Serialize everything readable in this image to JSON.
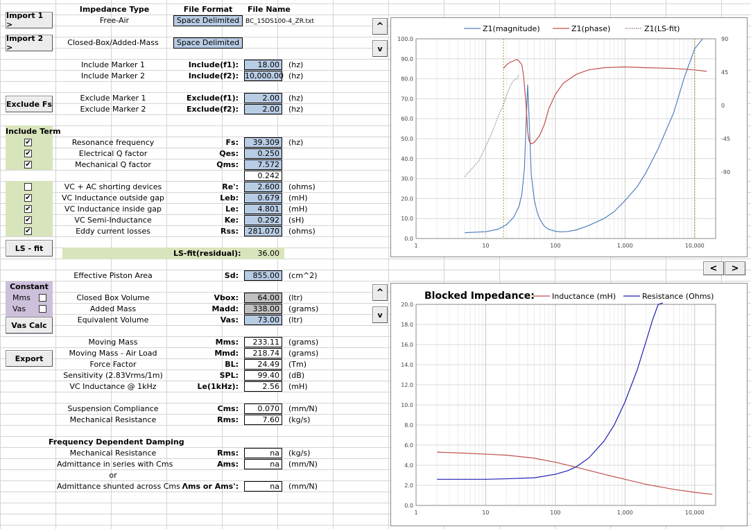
{
  "headers": {
    "impedance_type": "Impedance Type",
    "file_format": "File Format",
    "file_name": "File Name"
  },
  "imports": [
    {
      "button": "Import 1 >",
      "type": "Free-Air",
      "format": "Space Delimited",
      "file": "BC_15DS100-4_ZR.txt"
    },
    {
      "button": "Import 2 >",
      "type": "Closed-Box/Added-Mass",
      "format": "Space Delimited",
      "file": ""
    }
  ],
  "include_markers": [
    {
      "desc": "Include Marker 1",
      "sym": "Include(f1):",
      "value": "18.00",
      "unit": "(hz)"
    },
    {
      "desc": "Include Marker 2",
      "sym": "Include(f2):",
      "value": "10,000.00",
      "unit": "(hz)"
    }
  ],
  "exclude_button": "Exclude Fs",
  "exclude_markers": [
    {
      "desc": "Exclude Marker 1",
      "sym": "Exclude(f1):",
      "value": "2.00",
      "unit": "(hz)"
    },
    {
      "desc": "Exclude Marker 2",
      "sym": "Exclude(f2):",
      "value": "2.00",
      "unit": "(hz)"
    }
  ],
  "include_term_label": "Include Term",
  "term_group1": [
    {
      "checked": true,
      "desc": "Resonance frequency",
      "sym": "Fs:",
      "value": "39.309",
      "unit": "(hz)"
    },
    {
      "checked": true,
      "desc": "Electrical Q factor",
      "sym": "Qes:",
      "value": "0.250",
      "unit": ""
    },
    {
      "checked": true,
      "desc": "Mechanical Q factor",
      "sym": "Qms:",
      "value": "7.572",
      "unit": ""
    }
  ],
  "qts_value": "0.242",
  "term_group2": [
    {
      "checked": false,
      "desc": "VC + AC shorting devices",
      "sym": "Re':",
      "value": "2.600",
      "unit": "(ohms)"
    },
    {
      "checked": true,
      "desc": "VC Inductance outside gap",
      "sym": "Leb:",
      "value": "0.679",
      "unit": "(mH)"
    },
    {
      "checked": true,
      "desc": "VC Inductance inside gap",
      "sym": "Le:",
      "value": "4.801",
      "unit": "(mH)"
    },
    {
      "checked": true,
      "desc": "VC Semi-Inductance",
      "sym": "Ke:",
      "value": "0.292",
      "unit": "(sH)"
    },
    {
      "checked": true,
      "desc": "Eddy current losses",
      "sym": "Rss:",
      "value": "281.070",
      "unit": "(ohms)"
    }
  ],
  "ls_fit_button": "LS - fit",
  "ls_fit_residual": {
    "label": "LS-fit(residual):",
    "value": "36.00"
  },
  "piston": {
    "desc": "Effective Piston Area",
    "sym": "Sd:",
    "value": "855.00",
    "unit": "(cm^2)"
  },
  "constant": {
    "label": "Constant",
    "mms": "Mms",
    "vas": "Vas",
    "button": "Vas Calc"
  },
  "box_params": [
    {
      "desc": "Closed Box Volume",
      "sym": "Vbox:",
      "value": "64.00",
      "unit": "(ltr)"
    },
    {
      "desc": "Added Mass",
      "sym": "Madd:",
      "value": "338.00",
      "unit": "(grams)"
    },
    {
      "desc": "Equivalent Volume",
      "sym": "Vas:",
      "value": "73.00",
      "unit": "(ltr)"
    }
  ],
  "export_button": "Export",
  "results": [
    {
      "desc": "Moving Mass",
      "sym": "Mms:",
      "value": "233.11",
      "unit": "(grams)"
    },
    {
      "desc": "Moving Mass - Air Load",
      "sym": "Mmd:",
      "value": "218.74",
      "unit": "(grams)"
    },
    {
      "desc": "Force Factor",
      "sym": "BL:",
      "value": "24.49",
      "unit": "(Tm)"
    },
    {
      "desc": "Sensitivity (2.83Vrms/1m)",
      "sym": "SPL:",
      "value": "99.40",
      "unit": "(dB)"
    },
    {
      "desc": "VC Inductance @ 1kHz",
      "sym": "Le(1kHz):",
      "value": "2.56",
      "unit": "(mH)"
    }
  ],
  "suspension": [
    {
      "desc": "Suspension Compliance",
      "sym": "Cms:",
      "value": "0.070",
      "unit": "(mm/N)"
    },
    {
      "desc": "Mechanical Resistance",
      "sym": "Rms:",
      "value": "7.60",
      "unit": "(kg/s)"
    }
  ],
  "fdd": {
    "title": "Frequency Dependent Damping",
    "rows": [
      {
        "desc": "Mechanical Resistance",
        "sym": "Rms:",
        "value": "na",
        "unit": "(kg/s)"
      },
      {
        "desc": "Admittance in series with Cms",
        "sym": "Ams:",
        "value": "na",
        "unit": "(mm/N)"
      },
      {
        "desc": "or",
        "sym": "",
        "value": "",
        "unit": ""
      },
      {
        "desc": "Admittance shunted across Cms",
        "sym": "Λms or Ams':",
        "value": "na",
        "unit": "(mm/N)"
      }
    ]
  },
  "nav": {
    "up": "^",
    "down": "v",
    "prev": "<",
    "next": ">"
  },
  "chart_data": [
    {
      "type": "line",
      "title": "",
      "xscale": "log",
      "xlim": [
        1,
        20000
      ],
      "x_ticks": [
        "1",
        "10",
        "100",
        "1,000",
        "10,000"
      ],
      "ylim": [
        0,
        100
      ],
      "y_ticks": [
        "0.0",
        "10.0",
        "20.0",
        "30.0",
        "40.0",
        "50.0",
        "60.0",
        "70.0",
        "80.0",
        "90.0",
        "100.0"
      ],
      "y2lim": [
        -180,
        90
      ],
      "y2_ticks": [
        "90",
        "45",
        "0",
        "-45",
        "-90"
      ],
      "markers": [
        18,
        10000
      ],
      "legend_position": "top",
      "series": [
        {
          "name": "Z1(magnitude)",
          "color": "#4f81bd",
          "x": [
            5,
            10,
            15,
            20,
            25,
            30,
            33,
            36,
            38,
            40,
            42,
            45,
            50,
            55,
            60,
            70,
            80,
            100,
            120,
            150,
            200,
            300,
            500,
            700,
            1000,
            1500,
            2000,
            3000,
            5000,
            7000,
            10000,
            13000
          ],
          "values": [
            2.9,
            3.4,
            4.6,
            7,
            10.5,
            16,
            22,
            35,
            58,
            77,
            60,
            32,
            19,
            13,
            9.5,
            6,
            4.6,
            3.6,
            3.3,
            3.5,
            4.3,
            6.5,
            10,
            13.5,
            19,
            26,
            33,
            45,
            63,
            80,
            95,
            108
          ]
        },
        {
          "name": "Z1(phase)",
          "color": "#c0504d",
          "x": [
            18,
            20,
            22,
            25,
            28,
            30,
            33,
            35,
            38,
            40,
            42,
            45,
            50,
            60,
            70,
            80,
            100,
            130,
            200,
            300,
            500,
            1000,
            2000,
            5000,
            10000,
            15000
          ],
          "values": [
            50,
            55,
            58,
            60,
            62,
            60,
            55,
            40,
            0,
            -35,
            -48,
            -52,
            -50,
            -40,
            -25,
            -5,
            15,
            30,
            42,
            48,
            51,
            52,
            51,
            50,
            48,
            46
          ]
        },
        {
          "name": "Z1(LS-fit)",
          "color": "#8b6a6a",
          "x": [
            5,
            8,
            10,
            13,
            15,
            18,
            20,
            23,
            25,
            28,
            30
          ],
          "values": [
            31,
            39,
            46,
            55,
            61,
            67,
            72,
            77,
            79,
            80,
            82
          ]
        }
      ]
    },
    {
      "type": "line",
      "title": "Blocked Impedance:",
      "xscale": "log",
      "xlim": [
        1,
        20000
      ],
      "x_ticks": [
        "1",
        "10",
        "100",
        "1,000",
        "10,000"
      ],
      "ylim": [
        0,
        20
      ],
      "y_ticks": [
        "0.0",
        "2.0",
        "4.0",
        "6.0",
        "8.0",
        "10.0",
        "12.0",
        "14.0",
        "16.0",
        "18.0",
        "20.0"
      ],
      "legend_position": "top-right",
      "series": [
        {
          "name": "Inductance (mH)",
          "color": "#c0504d",
          "x": [
            2,
            5,
            10,
            20,
            50,
            100,
            200,
            500,
            1000,
            2000,
            5000,
            10000,
            18000
          ],
          "values": [
            5.3,
            5.2,
            5.1,
            5.0,
            4.7,
            4.3,
            3.8,
            3.1,
            2.6,
            2.1,
            1.6,
            1.3,
            1.1
          ]
        },
        {
          "name": "Resistance (Ohms)",
          "color": "#1f1fb4",
          "x": [
            2,
            5,
            10,
            20,
            50,
            100,
            150,
            200,
            300,
            500,
            700,
            1000,
            1500,
            2000,
            2500,
            3000,
            3500
          ],
          "values": [
            2.6,
            2.6,
            2.6,
            2.65,
            2.75,
            3.1,
            3.45,
            3.85,
            4.7,
            6.4,
            8.0,
            10.3,
            13.5,
            16.3,
            18.5,
            20.0,
            20.8
          ]
        }
      ]
    }
  ]
}
